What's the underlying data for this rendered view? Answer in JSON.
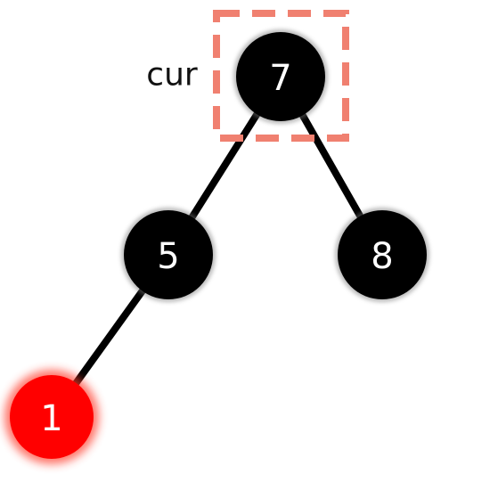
{
  "tree": {
    "nodes": [
      {
        "id": "n7",
        "label": "7",
        "color": "#000000",
        "highlighted": true
      },
      {
        "id": "n5",
        "label": "5",
        "color": "#000000",
        "highlighted": false
      },
      {
        "id": "n8",
        "label": "8",
        "color": "#000000",
        "highlighted": false
      },
      {
        "id": "n1",
        "label": "1",
        "color": "#ff0000",
        "highlighted": false
      }
    ],
    "edges": [
      {
        "from": "n7",
        "to": "n5"
      },
      {
        "from": "n7",
        "to": "n8"
      },
      {
        "from": "n5",
        "to": "n1"
      }
    ],
    "pointer": {
      "label": "cur",
      "target": "n7"
    }
  },
  "colors": {
    "black_node": "#000000",
    "red_node": "#ff0000",
    "highlight_box": "#f08070",
    "edge": "#000000",
    "node_text": "#ffffff"
  }
}
